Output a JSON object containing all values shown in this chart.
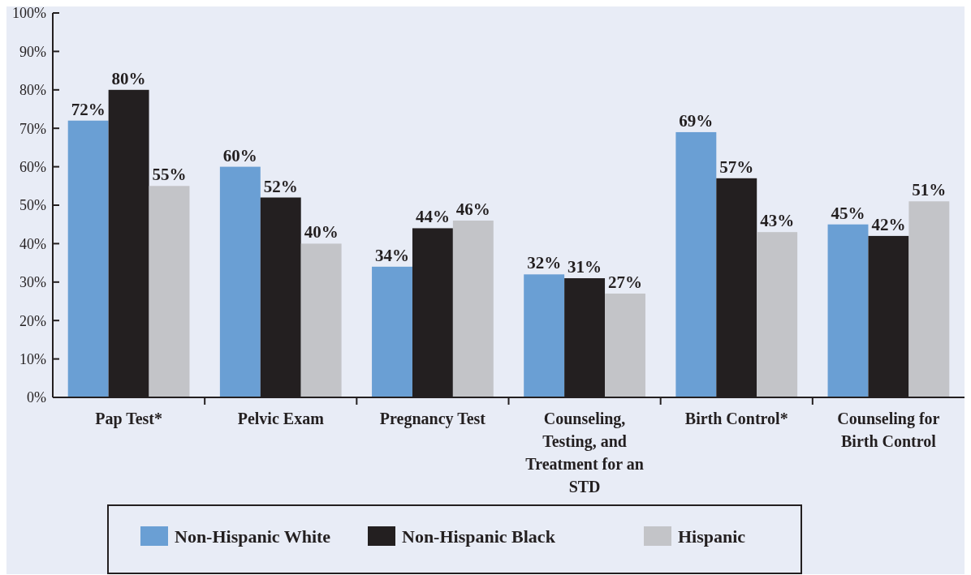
{
  "chart_data": {
    "type": "bar",
    "categories": [
      "Pap Test*",
      "Pelvic Exam",
      "Pregnancy Test",
      "Counseling, Testing, and Treatment for an STD",
      "Birth Control*",
      "Counseling for Birth Control"
    ],
    "series": [
      {
        "name": "Non-Hispanic White",
        "color": "#6a9fd4",
        "values": [
          72,
          60,
          34,
          32,
          69,
          45
        ],
        "value_labels": [
          "72%",
          "60%",
          "34%",
          "32%",
          "69%",
          "45%"
        ]
      },
      {
        "name": "Non-Hispanic Black",
        "color": "#231f20",
        "values": [
          80,
          52,
          44,
          31,
          57,
          42
        ],
        "value_labels": [
          "80%",
          "52%",
          "44%",
          "31%",
          "57%",
          "42%"
        ]
      },
      {
        "name": "Hispanic",
        "color": "#c3c4c8",
        "values": [
          55,
          40,
          46,
          27,
          43,
          51
        ],
        "value_labels": [
          "55%",
          "40%",
          "46%",
          "27%",
          "43%",
          "51%"
        ]
      }
    ],
    "ylim": [
      0,
      100
    ],
    "yticks": [
      {
        "value": 0,
        "label": "0%"
      },
      {
        "value": 10,
        "label": "10%"
      },
      {
        "value": 20,
        "label": "20%"
      },
      {
        "value": 30,
        "label": "30%"
      },
      {
        "value": 40,
        "label": "40%"
      },
      {
        "value": 50,
        "label": "50%"
      },
      {
        "value": 60,
        "label": "60%"
      },
      {
        "value": 70,
        "label": "70%"
      },
      {
        "value": 80,
        "label": "80%"
      },
      {
        "value": 90,
        "label": "90%"
      },
      {
        "value": 100,
        "label": "100%"
      }
    ],
    "grid": false,
    "legend": "bottom"
  }
}
